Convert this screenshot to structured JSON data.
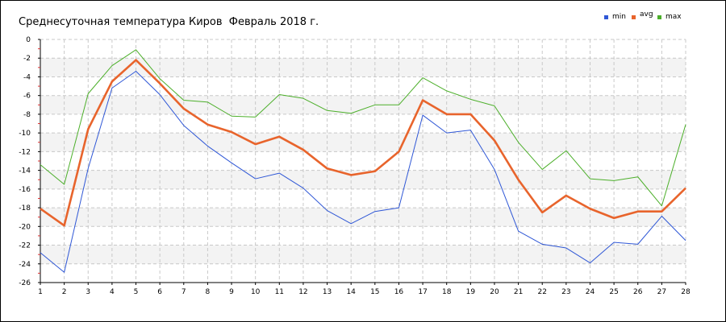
{
  "chart_data": {
    "type": "line",
    "title": "Среднесуточная температура Киров  Февраль 2018 г.",
    "xlabel": "",
    "ylabel": "",
    "x": [
      1,
      2,
      3,
      4,
      5,
      6,
      7,
      8,
      9,
      10,
      11,
      12,
      13,
      14,
      15,
      16,
      17,
      18,
      19,
      20,
      21,
      22,
      23,
      24,
      25,
      26,
      27,
      28
    ],
    "xlim": [
      1,
      28
    ],
    "ylim": [
      -26,
      0
    ],
    "yticks": [
      0,
      -2,
      -4,
      -6,
      -8,
      -10,
      -12,
      -14,
      -16,
      -18,
      -20,
      -22,
      -24,
      -26
    ],
    "grid": true,
    "legend_position": "top-right",
    "series": [
      {
        "name": "min",
        "color": "#2f57d6",
        "values": [
          -22.8,
          -24.9,
          -13.8,
          -5.2,
          -3.4,
          -5.9,
          -9.2,
          -11.4,
          -13.2,
          -14.9,
          -14.3,
          -15.9,
          -18.3,
          -19.7,
          -18.4,
          -18.0,
          -8.1,
          -10.0,
          -9.7,
          -13.9,
          -20.5,
          -21.9,
          -22.3,
          -23.9,
          -21.7,
          -21.9,
          -18.9,
          -21.5
        ]
      },
      {
        "name": "avg",
        "color": "#e8642c",
        "values": [
          -18.1,
          -19.9,
          -9.6,
          -4.5,
          -2.2,
          -4.7,
          -7.4,
          -9.1,
          -9.9,
          -11.2,
          -10.4,
          -11.8,
          -13.8,
          -14.5,
          -14.1,
          -12.0,
          -6.5,
          -8.0,
          -8.0,
          -10.8,
          -15.0,
          -18.5,
          -16.7,
          -18.1,
          -19.1,
          -18.4,
          -18.4,
          -15.9
        ]
      },
      {
        "name": "max",
        "color": "#4caf2a",
        "values": [
          -13.4,
          -15.5,
          -5.8,
          -2.8,
          -1.1,
          -4.2,
          -6.5,
          -6.7,
          -8.2,
          -8.3,
          -5.9,
          -6.3,
          -7.6,
          -7.9,
          -7.0,
          -7.0,
          -4.1,
          -5.5,
          -6.4,
          -7.1,
          -11.0,
          -13.9,
          -11.9,
          -14.9,
          -15.1,
          -14.7,
          -17.8,
          -9.1
        ]
      }
    ]
  }
}
